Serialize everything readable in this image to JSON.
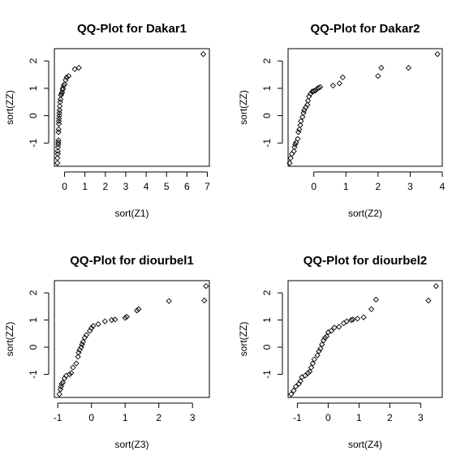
{
  "chart_data": [
    {
      "type": "scatter",
      "title": "QQ-Plot for Dakar1",
      "xlabel": "sort(Z1)",
      "ylabel": "sort(ZZ)",
      "xlim": [
        -0.5,
        7.1
      ],
      "ylim": [
        -1.85,
        2.45
      ],
      "xticks": [
        0,
        1,
        2,
        3,
        4,
        5,
        6,
        7
      ],
      "yticks": [
        -1,
        0,
        1,
        2
      ],
      "grid": false,
      "points": {
        "x": [
          -0.35,
          -0.35,
          -0.33,
          -0.33,
          -0.32,
          -0.31,
          -0.31,
          -0.3,
          -0.3,
          -0.29,
          -0.28,
          -0.28,
          -0.27,
          -0.26,
          -0.26,
          -0.25,
          -0.24,
          -0.22,
          -0.2,
          -0.18,
          -0.15,
          -0.12,
          -0.1,
          -0.08,
          -0.05,
          0.0,
          0.05,
          0.1,
          0.2,
          0.5,
          0.7,
          6.8
        ],
        "y": [
          -1.73,
          -1.55,
          -1.4,
          -1.3,
          -1.15,
          -1.05,
          -0.98,
          -0.9,
          -0.6,
          -0.5,
          -0.3,
          -0.2,
          -0.1,
          0.0,
          0.1,
          0.2,
          0.35,
          0.5,
          0.6,
          0.75,
          0.8,
          0.85,
          0.95,
          1.0,
          1.1,
          1.15,
          1.3,
          1.4,
          1.45,
          1.7,
          1.75,
          2.25
        ]
      }
    },
    {
      "type": "scatter",
      "title": "QQ-Plot for Dakar2",
      "xlabel": "sort(Z2)",
      "ylabel": "sort(ZZ)",
      "xlim": [
        -0.8,
        4.0
      ],
      "ylim": [
        -1.85,
        2.45
      ],
      "xticks": [
        0,
        1,
        2,
        3,
        4
      ],
      "yticks": [
        -1,
        0,
        1,
        2
      ],
      "grid": false,
      "points": {
        "x": [
          -0.75,
          -0.72,
          -0.68,
          -0.62,
          -0.6,
          -0.58,
          -0.55,
          -0.5,
          -0.48,
          -0.45,
          -0.42,
          -0.4,
          -0.35,
          -0.32,
          -0.3,
          -0.25,
          -0.2,
          -0.18,
          -0.15,
          -0.1,
          -0.05,
          0.0,
          0.05,
          0.1,
          0.15,
          0.2,
          0.6,
          0.8,
          0.9,
          2.0,
          2.1,
          2.95,
          3.85
        ],
        "y": [
          -1.73,
          -1.55,
          -1.4,
          -1.3,
          -1.15,
          -1.05,
          -0.98,
          -0.85,
          -0.6,
          -0.5,
          -0.35,
          -0.2,
          -0.05,
          0.1,
          0.2,
          0.3,
          0.4,
          0.55,
          0.7,
          0.8,
          0.88,
          0.9,
          0.92,
          0.98,
          1.02,
          1.05,
          1.1,
          1.18,
          1.4,
          1.45,
          1.75,
          1.75,
          2.25
        ]
      }
    },
    {
      "type": "scatter",
      "title": "QQ-Plot for diourbel1",
      "xlabel": "sort(Z3)",
      "ylabel": "sort(ZZ)",
      "xlim": [
        -1.1,
        3.5
      ],
      "ylim": [
        -1.85,
        2.45
      ],
      "xticks": [
        -1,
        0,
        1,
        2,
        3
      ],
      "yticks": [
        -1,
        0,
        1,
        2
      ],
      "grid": false,
      "points": {
        "x": [
          -0.95,
          -0.92,
          -0.9,
          -0.88,
          -0.85,
          -0.8,
          -0.75,
          -0.65,
          -0.6,
          -0.55,
          -0.45,
          -0.4,
          -0.38,
          -0.35,
          -0.3,
          -0.28,
          -0.25,
          -0.2,
          -0.15,
          -0.05,
          0.0,
          0.05,
          0.2,
          0.4,
          0.6,
          0.7,
          1.0,
          1.05,
          1.35,
          1.4,
          2.3,
          3.35,
          3.4
        ],
        "y": [
          -1.73,
          -1.55,
          -1.45,
          -1.35,
          -1.3,
          -1.15,
          -1.05,
          -1.0,
          -0.95,
          -0.75,
          -0.6,
          -0.35,
          -0.2,
          -0.1,
          0.0,
          0.1,
          0.2,
          0.35,
          0.45,
          0.6,
          0.7,
          0.78,
          0.85,
          0.95,
          1.0,
          1.02,
          1.08,
          1.12,
          1.35,
          1.4,
          1.7,
          1.72,
          2.25
        ]
      }
    },
    {
      "type": "scatter",
      "title": "QQ-Plot for diourbel2",
      "xlabel": "sort(Z4)",
      "ylabel": "sort(ZZ)",
      "xlim": [
        -1.3,
        3.7
      ],
      "ylim": [
        -1.85,
        2.45
      ],
      "xticks": [
        -1,
        0,
        1,
        2,
        3
      ],
      "yticks": [
        -1,
        0,
        1,
        2
      ],
      "grid": false,
      "points": {
        "x": [
          -1.2,
          -1.12,
          -1.05,
          -0.95,
          -0.9,
          -0.85,
          -0.75,
          -0.65,
          -0.6,
          -0.55,
          -0.5,
          -0.45,
          -0.35,
          -0.3,
          -0.25,
          -0.2,
          -0.15,
          -0.1,
          -0.05,
          0.0,
          0.1,
          0.2,
          0.35,
          0.5,
          0.6,
          0.75,
          0.8,
          0.95,
          1.15,
          1.4,
          1.55,
          3.25,
          3.5
        ],
        "y": [
          -1.73,
          -1.6,
          -1.45,
          -1.35,
          -1.25,
          -1.1,
          -1.05,
          -0.95,
          -0.9,
          -0.75,
          -0.6,
          -0.45,
          -0.3,
          -0.15,
          -0.05,
          0.1,
          0.25,
          0.35,
          0.4,
          0.55,
          0.6,
          0.72,
          0.75,
          0.88,
          0.95,
          1.0,
          1.02,
          1.05,
          1.1,
          1.4,
          1.75,
          1.72,
          2.25
        ]
      }
    }
  ]
}
